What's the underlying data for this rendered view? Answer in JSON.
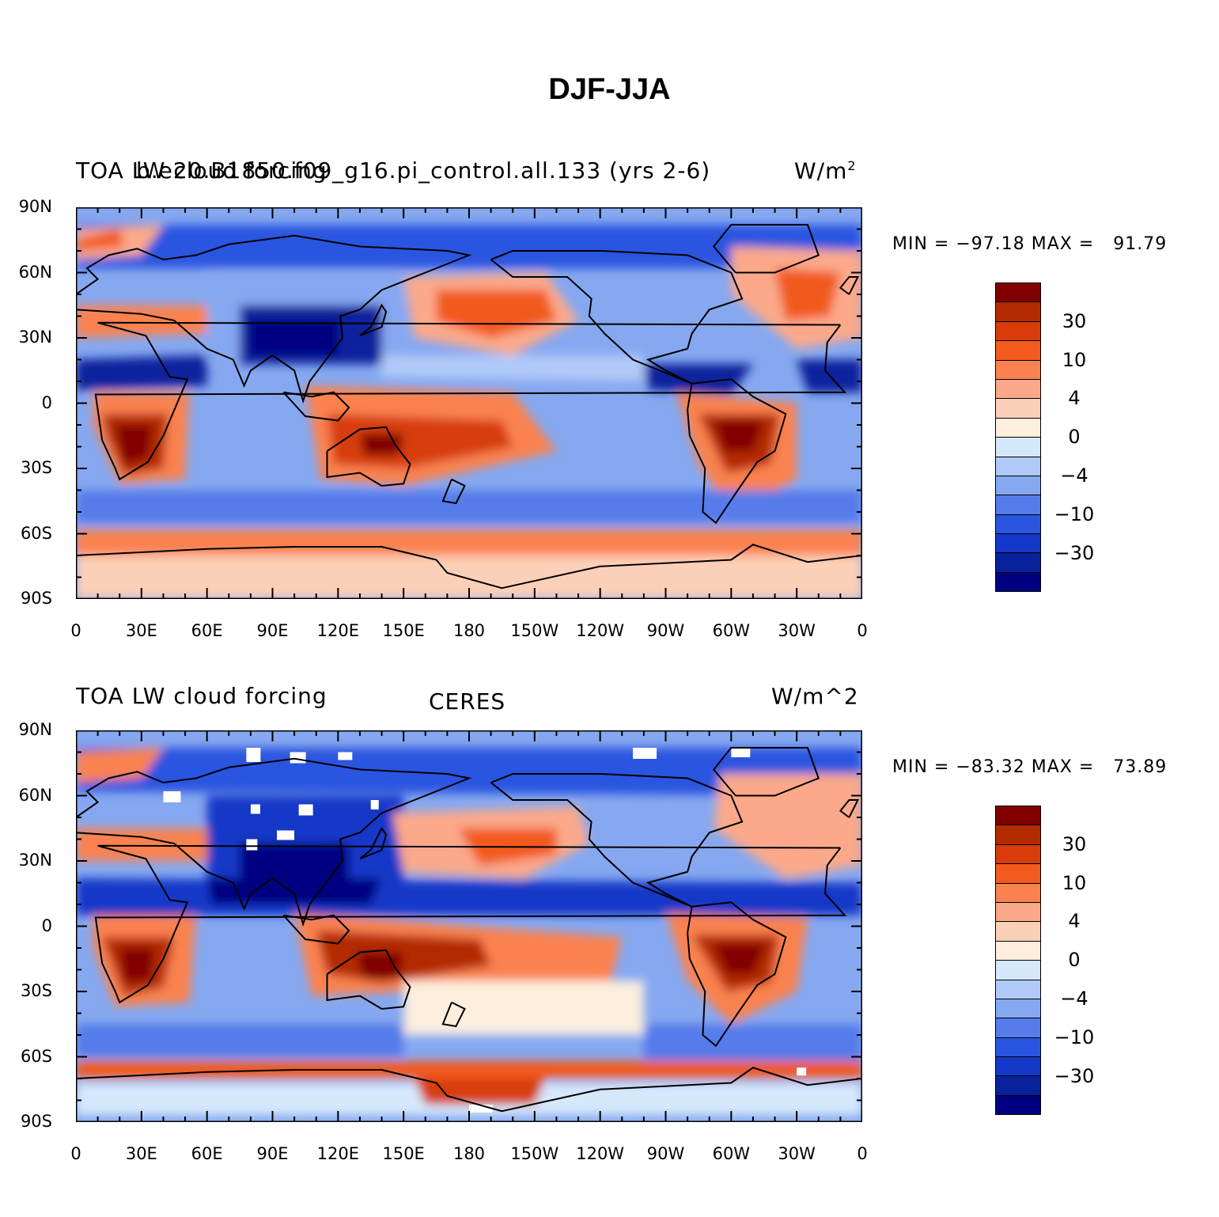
{
  "title": "DJF-JJA",
  "colorbar": {
    "colors": [
      "#800000",
      "#b42a00",
      "#d73c0a",
      "#f25a1e",
      "#fa8250",
      "#fba98a",
      "#fcd0b8",
      "#fdeede",
      "#d6e8fc",
      "#b0caf8",
      "#86a8f0",
      "#557cea",
      "#2a55e0",
      "#1438c8",
      "#0a219c",
      "#000080"
    ],
    "labels": [
      "30",
      "10",
      "4",
      "0",
      "−4",
      "−10",
      "−30"
    ]
  },
  "axes": {
    "lat_labels": [
      "90N",
      "60N",
      "30N",
      "0",
      "30S",
      "60S",
      "90S"
    ],
    "lon_labels": [
      "0",
      "30E",
      "60E",
      "90E",
      "120E",
      "150E",
      "180",
      "150W",
      "120W",
      "90W",
      "60W",
      "30W",
      "0"
    ]
  },
  "panels": [
    {
      "left_title": "TOA LW cloud forcing",
      "center_title": "b.e20.B1850.f09_g16.pi_control.all.133 (yrs 2-6)",
      "right_unit": "W/m",
      "right_unit_sup": "2",
      "min_text": "MIN = −97.18",
      "max_text": "MAX =   91.79"
    },
    {
      "left_title": "TOA LW cloud forcing",
      "center_title": "CERES",
      "right_unit": "W/m^2",
      "right_unit_sup": "",
      "min_text": "MIN = −83.32",
      "max_text": "MAX =   73.89"
    }
  ]
}
